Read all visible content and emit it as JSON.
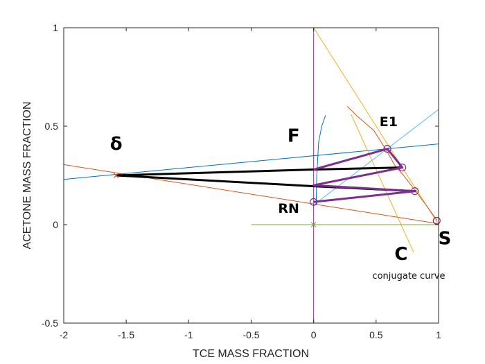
{
  "chart_data": {
    "type": "line",
    "xlabel": "TCE MASS FRACTION",
    "ylabel": "ACETONE MASS FRACTION",
    "xlim": [
      -2,
      1
    ],
    "ylim": [
      -0.5,
      1
    ],
    "xticks": [
      "-2",
      "-1.5",
      "-1",
      "-0.5",
      "0",
      "0.5",
      "1"
    ],
    "yticks": [
      "-0.5",
      "0",
      "0.5",
      "1"
    ],
    "grid": false,
    "series": [
      {
        "color": "#0072BD",
        "x": [
          -2,
          1
        ],
        "y": [
          0.23,
          0.41
        ]
      },
      {
        "color": "#D95319",
        "x": [
          -2,
          1
        ],
        "y": [
          0.305,
          0.005
        ]
      },
      {
        "color": "#EDB120",
        "x": [
          0,
          1
        ],
        "y": [
          1,
          0
        ]
      },
      {
        "color": "#EDB120",
        "x": [
          0.3,
          0.8
        ],
        "y": [
          0.56,
          -0.14
        ]
      },
      {
        "color": "#7E2F8E",
        "x": [
          0,
          0
        ],
        "y": [
          -0.5,
          1
        ]
      },
      {
        "color": "#77AC30",
        "x": [
          -0.5,
          1
        ],
        "y": [
          0,
          0
        ]
      },
      {
        "color": "#4DBEEE",
        "x": [
          0,
          1
        ],
        "y": [
          0.1,
          0.585
        ]
      },
      {
        "color": "#0072BD",
        "x": [
          0.02,
          0.025,
          0.04,
          0.065,
          0.095
        ],
        "y": [
          0.1,
          0.25,
          0.42,
          0.5,
          0.555
        ]
      },
      {
        "color": "#D95319",
        "x": [
          0.27,
          0.35,
          0.48,
          0.58,
          0.65,
          0.72,
          0.83,
          0.99
        ],
        "y": [
          0.6,
          0.55,
          0.48,
          0.38,
          0.3,
          0.25,
          0.16,
          0.02
        ]
      },
      {
        "color": "#000000",
        "x": [
          -1.58,
          0,
          0.7
        ],
        "y": [
          0.25,
          0.28,
          0.29
        ]
      },
      {
        "color": "#000000",
        "x": [
          -1.58,
          0,
          0.82
        ],
        "y": [
          0.25,
          0.195,
          0.17
        ]
      },
      {
        "color": "#7E2F8E",
        "x": [
          0,
          0.59,
          0.71,
          0,
          0.81,
          0
        ],
        "y": [
          0.28,
          0.385,
          0.29,
          0.2,
          0.17,
          0.115
        ]
      }
    ],
    "points": [
      {
        "color": "#7E2F8E",
        "marker": "circle",
        "x": 0.59,
        "y": 0.385
      },
      {
        "color": "#7E2F8E",
        "marker": "circle",
        "x": 0.71,
        "y": 0.29
      },
      {
        "color": "#7E2F8E",
        "marker": "circle",
        "x": 0.81,
        "y": 0.17
      },
      {
        "color": "#7E2F8E",
        "marker": "circle",
        "x": 0.985,
        "y": 0.02
      },
      {
        "color": "#7E2F8E",
        "marker": "circle",
        "x": 0,
        "y": 0.115
      },
      {
        "color": "#D95319",
        "marker": "x",
        "x": -1.58,
        "y": 0.25
      },
      {
        "color": "#77AC30",
        "marker": "x",
        "x": 0,
        "y": 0
      }
    ],
    "annotations": [
      {
        "text": "conjugate curve",
        "x": 0.47,
        "y": -0.275
      }
    ],
    "handwritten_labels": [
      {
        "text": "δ",
        "x": -1.58,
        "y": 0.38
      },
      {
        "text": "F",
        "x": -0.16,
        "y": 0.42
      },
      {
        "text": "E1",
        "x": 0.6,
        "y": 0.5
      },
      {
        "text": "RN",
        "x": -0.2,
        "y": 0.06
      },
      {
        "text": "S",
        "x": 1.05,
        "y": -0.1
      },
      {
        "text": "C",
        "x": 0.7,
        "y": -0.18
      }
    ]
  }
}
